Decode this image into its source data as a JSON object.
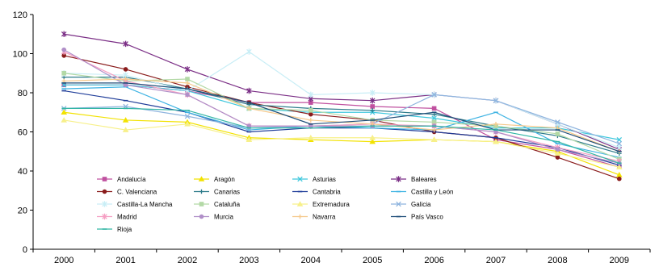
{
  "chart_data": {
    "type": "line",
    "title": "",
    "xlabel": "",
    "ylabel": "",
    "ylim": [
      0,
      120
    ],
    "yticks": [
      0,
      20,
      40,
      60,
      80,
      100,
      120
    ],
    "x": [
      "2000",
      "2001",
      "2002",
      "2003",
      "2004",
      "2005",
      "2006",
      "2007",
      "2008",
      "2009"
    ],
    "grid": false,
    "legend_position": "bottom-left",
    "series": [
      {
        "name": "Andalucía",
        "color": "#c0509f",
        "marker": "square",
        "values": [
          84,
          84,
          81,
          75,
          75,
          73,
          72,
          56,
          51,
          42
        ]
      },
      {
        "name": "Aragón",
        "color": "#f2e200",
        "marker": "triangle",
        "values": [
          70,
          66,
          65,
          57,
          56,
          55,
          56,
          55,
          50,
          38
        ]
      },
      {
        "name": "Asturias",
        "color": "#3fc8dd",
        "marker": "x",
        "values": [
          84,
          84,
          81,
          72,
          70,
          70,
          67,
          62,
          62,
          56
        ]
      },
      {
        "name": "Baleares",
        "color": "#7b2f86",
        "marker": "star",
        "values": [
          110,
          105,
          92,
          81,
          77,
          76,
          79,
          76,
          64,
          51
        ]
      },
      {
        "name": "C. Valenciana",
        "color": "#8a1c1c",
        "marker": "circle",
        "values": [
          99,
          92,
          83,
          75,
          69,
          66,
          60,
          57,
          47,
          36
        ]
      },
      {
        "name": "Canarias",
        "color": "#2c7b8a",
        "marker": "plus",
        "values": [
          88,
          88,
          82,
          74,
          72,
          71,
          69,
          63,
          58,
          49
        ]
      },
      {
        "name": "Cantabria",
        "color": "#1f3d99",
        "marker": "dash",
        "values": [
          81,
          76,
          70,
          60,
          62,
          62,
          60,
          57,
          52,
          43
        ]
      },
      {
        "name": "Castilla y León",
        "color": "#3eb3e3",
        "marker": "dash",
        "values": [
          82,
          83,
          70,
          61,
          63,
          62,
          61,
          70,
          54,
          47
        ]
      },
      {
        "name": "Castilla-La Mancha",
        "color": "#c9eef6",
        "marker": "star",
        "values": [
          90,
          89,
          81,
          101,
          79,
          80,
          79,
          76,
          64,
          52
        ]
      },
      {
        "name": "Cataluña",
        "color": "#b3d9a6",
        "marker": "square",
        "values": [
          90,
          86,
          87,
          72,
          71,
          66,
          65,
          63,
          59,
          46
        ]
      },
      {
        "name": "Extremadura",
        "color": "#f7f08a",
        "marker": "triangle",
        "values": [
          66,
          61,
          64,
          56,
          57,
          57,
          56,
          55,
          49,
          42
        ]
      },
      {
        "name": "Galicia",
        "color": "#8fb5df",
        "marker": "x",
        "values": [
          72,
          73,
          68,
          62,
          63,
          64,
          79,
          76,
          65,
          54
        ]
      },
      {
        "name": "Madrid",
        "color": "#f59fc3",
        "marker": "star",
        "values": [
          101,
          86,
          79,
          63,
          63,
          64,
          63,
          60,
          52,
          45
        ]
      },
      {
        "name": "Murcia",
        "color": "#b08fc8",
        "marker": "circle",
        "values": [
          102,
          84,
          79,
          63,
          63,
          63,
          63,
          60,
          51,
          44
        ]
      },
      {
        "name": "Navarra",
        "color": "#f5c98c",
        "marker": "plus",
        "values": [
          86,
          87,
          85,
          72,
          66,
          64,
          61,
          64,
          62,
          50
        ]
      },
      {
        "name": "País Vasco",
        "color": "#1f4e79",
        "marker": "dash",
        "values": [
          85,
          85,
          82,
          75,
          64,
          66,
          70,
          61,
          61,
          50
        ]
      },
      {
        "name": "Rioja",
        "color": "#33b6a5",
        "marker": "dash",
        "values": [
          72,
          72,
          71,
          62,
          62,
          63,
          63,
          61,
          55,
          44
        ]
      }
    ]
  }
}
